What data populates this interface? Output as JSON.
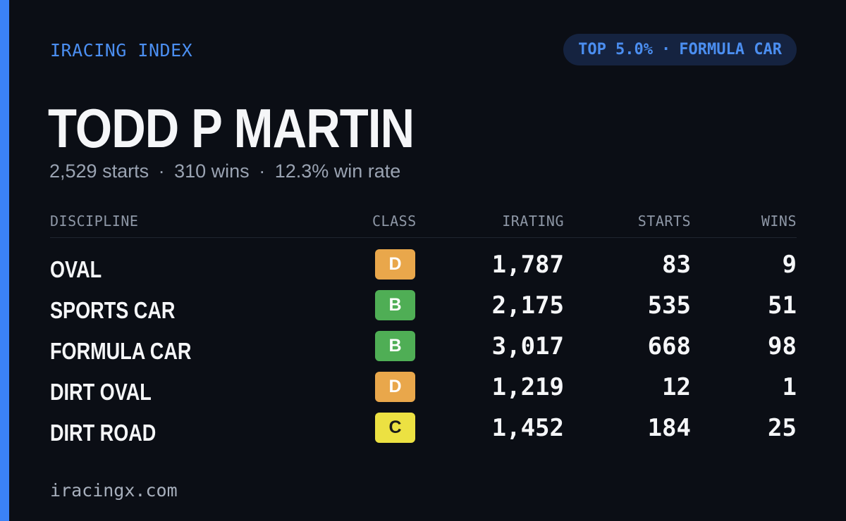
{
  "brand": "IRACING INDEX",
  "rank_badge": {
    "percentile": "TOP 5.0%",
    "separator": "·",
    "discipline": "FORMULA CAR"
  },
  "driver": {
    "name": "TODD P MARTIN",
    "starts": "2,529 starts",
    "wins": "310 wins",
    "win_rate": "12.3% win rate",
    "separator": "·"
  },
  "table": {
    "headers": {
      "discipline": "DISCIPLINE",
      "class": "CLASS",
      "irating": "IRATING",
      "starts": "STARTS",
      "wins": "WINS"
    },
    "rows": [
      {
        "discipline": "OVAL",
        "class": "D",
        "irating": "1,787",
        "starts": "83",
        "wins": "9"
      },
      {
        "discipline": "SPORTS CAR",
        "class": "B",
        "irating": "2,175",
        "starts": "535",
        "wins": "51"
      },
      {
        "discipline": "FORMULA CAR",
        "class": "B",
        "irating": "3,017",
        "starts": "668",
        "wins": "98"
      },
      {
        "discipline": "DIRT OVAL",
        "class": "D",
        "irating": "1,219",
        "starts": "12",
        "wins": "1"
      },
      {
        "discipline": "DIRT ROAD",
        "class": "C",
        "irating": "1,452",
        "starts": "184",
        "wins": "25"
      }
    ]
  },
  "footer": "iracingx.com",
  "colors": {
    "background": "#0b0e15",
    "accent": "#3b82f6",
    "class_d": "#e9a74b",
    "class_b": "#4fae55",
    "class_c": "#ece142"
  }
}
